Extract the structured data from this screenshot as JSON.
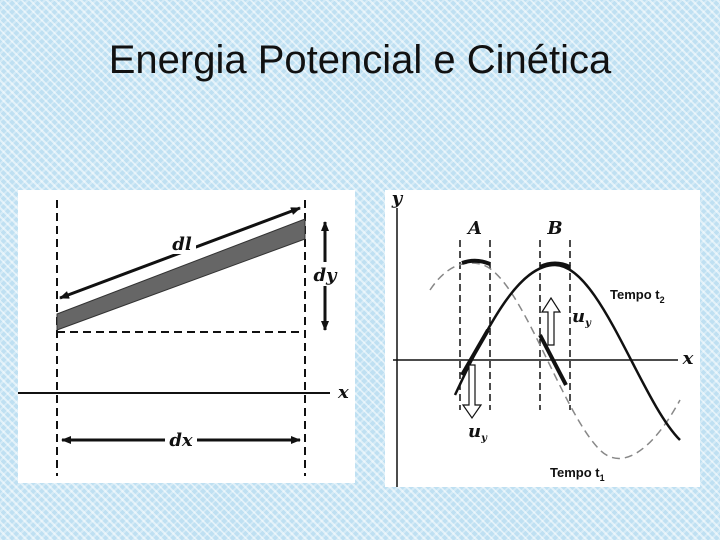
{
  "header": {
    "title": "Energia Potencial e Cinética"
  },
  "left_figure": {
    "labels": {
      "segment": "dl",
      "rise": "dy",
      "axis": "x",
      "run": "dx"
    }
  },
  "right_figure": {
    "labels": {
      "y_axis": "y",
      "x_axis": "x",
      "region_a": "A",
      "region_b": "B",
      "velocity_a": {
        "text": "u",
        "sub": "y"
      },
      "velocity_b": {
        "text": "u",
        "sub": "y"
      },
      "time_2": {
        "text": "Tempo t",
        "sub": "2"
      },
      "time_1": {
        "text": "Tempo t",
        "sub": "1"
      }
    }
  }
}
